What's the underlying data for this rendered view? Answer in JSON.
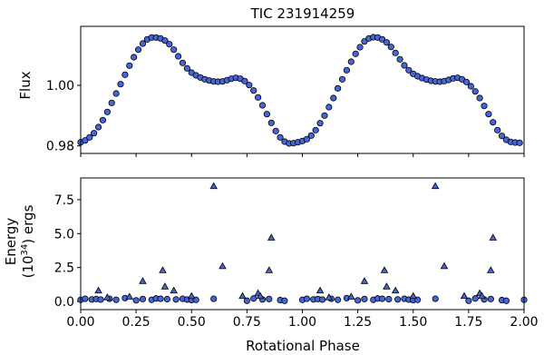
{
  "chart_data": [
    {
      "type": "scatter",
      "title": "TIC 231914259",
      "ylabel": "Flux",
      "xlabel": "",
      "xlim": [
        0,
        2
      ],
      "ylim": [
        0.9775,
        1.0195
      ],
      "xticks": [
        0.0,
        0.25,
        0.5,
        0.75,
        1.0,
        1.25,
        1.5,
        1.75,
        2.0
      ],
      "yticks": [
        0.98,
        1.0
      ],
      "ytick_labels": [
        "0.98",
        "1.00"
      ],
      "show_xtick_labels": false,
      "grid": false,
      "marker": "circle",
      "color": "#4466d8",
      "edgecolor": "#000000",
      "x": [
        0.0,
        0.02,
        0.04,
        0.06,
        0.08,
        0.1,
        0.12,
        0.14,
        0.16,
        0.18,
        0.2,
        0.22,
        0.24,
        0.26,
        0.28,
        0.3,
        0.32,
        0.34,
        0.36,
        0.38,
        0.4,
        0.42,
        0.44,
        0.46,
        0.48,
        0.5,
        0.52,
        0.54,
        0.56,
        0.58,
        0.6,
        0.62,
        0.64,
        0.66,
        0.68,
        0.7,
        0.72,
        0.74,
        0.76,
        0.78,
        0.8,
        0.82,
        0.84,
        0.86,
        0.88,
        0.9,
        0.92,
        0.94,
        0.96,
        0.98,
        1.0,
        1.02,
        1.04,
        1.06,
        1.08,
        1.1,
        1.12,
        1.14,
        1.16,
        1.18,
        1.2,
        1.22,
        1.24,
        1.26,
        1.28,
        1.3,
        1.32,
        1.34,
        1.36,
        1.38,
        1.4,
        1.42,
        1.44,
        1.46,
        1.48,
        1.5,
        1.52,
        1.54,
        1.56,
        1.58,
        1.6,
        1.62,
        1.64,
        1.66,
        1.68,
        1.7,
        1.72,
        1.74,
        1.76,
        1.78,
        1.8,
        1.82,
        1.84,
        1.86,
        1.88,
        1.9,
        1.92,
        1.94,
        1.96,
        1.98
      ],
      "y": [
        0.9812,
        0.9818,
        0.9828,
        0.9842,
        0.9862,
        0.9885,
        0.9912,
        0.9942,
        0.9973,
        1.0004,
        1.0035,
        1.0065,
        1.0093,
        1.0118,
        1.0138,
        1.0152,
        1.0158,
        1.0158,
        1.0155,
        1.0148,
        1.0136,
        1.0118,
        1.0096,
        1.0074,
        1.0056,
        1.0042,
        1.0033,
        1.0026,
        1.002,
        1.0016,
        1.0013,
        1.0012,
        1.0013,
        1.0017,
        1.0022,
        1.0025,
        1.0022,
        1.0014,
        1.0001,
        0.9983,
        0.996,
        0.9934,
        0.9905,
        0.9876,
        0.9849,
        0.9828,
        0.9814,
        0.9808,
        0.9809,
        0.9812,
        0.9816,
        0.9822,
        0.9834,
        0.9852,
        0.9875,
        0.99,
        0.9928,
        0.9958,
        0.999,
        1.002,
        1.005,
        1.0078,
        1.0104,
        1.0126,
        1.0145,
        1.0155,
        1.0159,
        1.0158,
        1.0152,
        1.0142,
        1.0127,
        1.0107,
        1.0086,
        1.0066,
        1.005,
        1.0038,
        1.003,
        1.0024,
        1.0019,
        1.0015,
        1.0013,
        1.0012,
        1.0014,
        1.0018,
        1.0023,
        1.0025,
        1.002,
        1.0011,
        0.9997,
        0.998,
        0.9958,
        0.9932,
        0.9905,
        0.9878,
        0.9852,
        0.9833,
        0.982,
        0.9813,
        0.9811,
        0.981
      ]
    },
    {
      "type": "scatter",
      "title": "",
      "xlabel": "Rotational Phase",
      "ylabel_line1": "Energy",
      "ylabel_line2": "(10",
      "ylabel_sup": "34",
      "ylabel_line2_end": ") ergs",
      "xlim": [
        0,
        2
      ],
      "ylim": [
        -0.6,
        9.1
      ],
      "xticks": [
        0.0,
        0.25,
        0.5,
        0.75,
        1.0,
        1.25,
        1.5,
        1.75,
        2.0
      ],
      "xtick_labels": [
        "0.00",
        "0.25",
        "0.50",
        "0.75",
        "1.00",
        "1.25",
        "1.50",
        "1.75",
        "2.00"
      ],
      "yticks": [
        0.0,
        2.5,
        5.0,
        7.5
      ],
      "ytick_labels": [
        "0.0",
        "2.5",
        "5.0",
        "7.5"
      ],
      "grid": false,
      "color": "#4466d8",
      "edgecolor": "#000000",
      "series": [
        {
          "marker": "circle",
          "x": [
            0.0,
            0.02,
            0.05,
            0.07,
            0.09,
            0.13,
            0.16,
            0.2,
            0.25,
            0.28,
            0.32,
            0.34,
            0.36,
            0.39,
            0.43,
            0.46,
            0.48,
            0.5,
            0.52,
            0.6,
            0.75,
            0.78,
            0.82,
            0.85,
            0.9,
            0.92,
            1.0,
            1.02,
            1.05,
            1.07,
            1.09,
            1.13,
            1.16,
            1.2,
            1.25,
            1.28,
            1.32,
            1.34,
            1.36,
            1.39,
            1.43,
            1.46,
            1.48,
            1.5,
            1.52,
            1.6,
            1.75,
            1.78,
            1.82,
            1.85,
            1.9,
            1.92,
            2.0
          ],
          "y": [
            0.12,
            0.2,
            0.15,
            0.18,
            0.14,
            0.2,
            0.12,
            0.25,
            0.08,
            0.18,
            0.12,
            0.22,
            0.2,
            0.17,
            0.15,
            0.2,
            0.14,
            0.1,
            0.12,
            0.2,
            0.05,
            0.22,
            0.15,
            0.18,
            0.1,
            0.05,
            0.12,
            0.2,
            0.15,
            0.18,
            0.14,
            0.2,
            0.12,
            0.25,
            0.08,
            0.18,
            0.12,
            0.22,
            0.2,
            0.17,
            0.15,
            0.2,
            0.14,
            0.1,
            0.12,
            0.2,
            0.05,
            0.22,
            0.15,
            0.18,
            0.1,
            0.05,
            0.12
          ]
        },
        {
          "marker": "triangle",
          "x": [
            0.08,
            0.12,
            0.22,
            0.28,
            0.37,
            0.38,
            0.42,
            0.5,
            0.6,
            0.64,
            0.73,
            0.8,
            0.81,
            0.85,
            0.86,
            1.08,
            1.12,
            1.22,
            1.28,
            1.37,
            1.38,
            1.42,
            1.5,
            1.6,
            1.64,
            1.73,
            1.8,
            1.81,
            1.85,
            1.86
          ],
          "y": [
            0.8,
            0.3,
            0.35,
            1.5,
            2.3,
            1.1,
            0.8,
            0.4,
            8.5,
            2.6,
            0.4,
            0.6,
            0.4,
            2.3,
            4.7,
            0.8,
            0.3,
            0.35,
            1.5,
            2.3,
            1.1,
            0.8,
            0.4,
            8.5,
            2.6,
            0.4,
            0.6,
            0.4,
            2.3,
            4.7
          ]
        }
      ]
    }
  ]
}
